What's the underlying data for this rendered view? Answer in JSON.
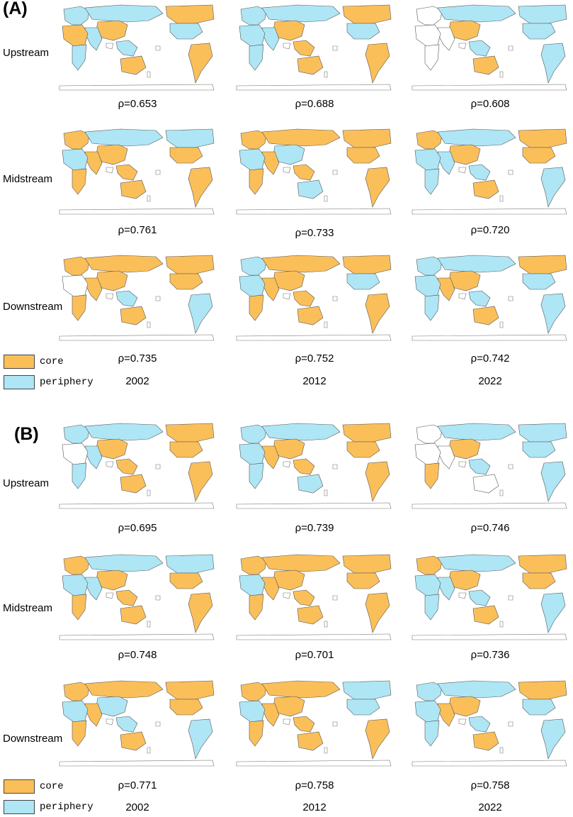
{
  "colors": {
    "core": "#fbbf5a",
    "periphery": "#aee6f5"
  },
  "panels": [
    {
      "label": "(A)",
      "rows": [
        {
          "name": "Upstream",
          "rho": [
            "ρ=0.653",
            "ρ=0.688",
            "ρ=0.608"
          ]
        },
        {
          "name": "Midstream",
          "rho": [
            "ρ=0.761",
            "ρ=0.733",
            "ρ=0.720"
          ]
        },
        {
          "name": "Downstream",
          "rho": [
            "ρ=0.735",
            "ρ=0.752",
            "ρ=0.742"
          ]
        }
      ],
      "years": [
        "2002",
        "2012",
        "2022"
      ],
      "legend": {
        "core": "core",
        "periphery": "periphery"
      }
    },
    {
      "label": "(B)",
      "rows": [
        {
          "name": "Upstream",
          "rho": [
            "ρ=0.695",
            "ρ=0.739",
            "ρ=0.746"
          ]
        },
        {
          "name": "Midstream",
          "rho": [
            "ρ=0.748",
            "ρ=0.701",
            "ρ=0.736"
          ]
        },
        {
          "name": "Downstream",
          "rho": [
            "ρ=0.771",
            "ρ=0.758",
            "ρ=0.758"
          ]
        }
      ],
      "years": [
        "2002",
        "2012",
        "2022"
      ],
      "legend": {
        "core": "core",
        "periphery": "periphery"
      }
    }
  ],
  "maps": [
    [
      "A-up-2002",
      "A-up-2012",
      "A-up-2022"
    ],
    [
      "A-mid-2002",
      "A-mid-2012",
      "A-mid-2022"
    ],
    [
      "A-down-2002",
      "A-down-2012",
      "A-down-2022"
    ],
    [
      "B-up-2002",
      "B-up-2012",
      "B-up-2022"
    ],
    [
      "B-mid-2002",
      "B-mid-2012",
      "B-mid-2022"
    ],
    [
      "B-down-2002",
      "B-down-2012",
      "B-down-2022"
    ]
  ],
  "regions": {
    "A-up-2002": {
      "europe": "p",
      "russia": "p",
      "china": "c",
      "sasia": "p",
      "seasia": "p",
      "africaN": "c",
      "africaS": "p",
      "australia": "c",
      "canada": "c",
      "usa": "p",
      "samerica": "c"
    },
    "A-up-2012": {
      "europe": "p",
      "russia": "p",
      "china": "c",
      "sasia": "p",
      "seasia": "c",
      "africaN": "p",
      "africaS": "p",
      "australia": "c",
      "canada": "c",
      "usa": "p",
      "samerica": "c"
    },
    "A-up-2022": {
      "europe": "n",
      "russia": "p",
      "china": "c",
      "sasia": "n",
      "seasia": "p",
      "africaN": "n",
      "africaS": "n",
      "australia": "c",
      "canada": "p",
      "usa": "p",
      "samerica": "p"
    },
    "A-mid-2002": {
      "europe": "c",
      "russia": "p",
      "china": "c",
      "sasia": "c",
      "seasia": "c",
      "africaN": "p",
      "africaS": "c",
      "australia": "c",
      "canada": "p",
      "usa": "c",
      "samerica": "c"
    },
    "A-mid-2012": {
      "europe": "c",
      "russia": "c",
      "china": "p",
      "sasia": "c",
      "seasia": "c",
      "africaN": "p",
      "africaS": "c",
      "australia": "p",
      "canada": "c",
      "usa": "c",
      "samerica": "c"
    },
    "A-mid-2022": {
      "europe": "c",
      "russia": "p",
      "china": "c",
      "sasia": "p",
      "seasia": "p",
      "africaN": "p",
      "africaS": "p",
      "australia": "c",
      "canada": "c",
      "usa": "c",
      "samerica": "p"
    },
    "A-down-2002": {
      "europe": "c",
      "russia": "c",
      "china": "c",
      "sasia": "c",
      "seasia": "p",
      "africaN": "n",
      "africaS": "c",
      "australia": "c",
      "canada": "c",
      "usa": "c",
      "samerica": "p"
    },
    "A-down-2012": {
      "europe": "p",
      "russia": "c",
      "china": "c",
      "sasia": "c",
      "seasia": "c",
      "africaN": "p",
      "africaS": "c",
      "australia": "c",
      "canada": "c",
      "usa": "p",
      "samerica": "c"
    },
    "A-down-2022": {
      "europe": "p",
      "russia": "p",
      "china": "c",
      "sasia": "c",
      "seasia": "p",
      "africaN": "p",
      "africaS": "p",
      "australia": "c",
      "canada": "c",
      "usa": "p",
      "samerica": "p"
    },
    "B-up-2002": {
      "europe": "p",
      "russia": "p",
      "china": "c",
      "sasia": "p",
      "seasia": "c",
      "africaN": "n",
      "africaS": "p",
      "australia": "c",
      "canada": "c",
      "usa": "c",
      "samerica": "c"
    },
    "B-up-2012": {
      "europe": "p",
      "russia": "p",
      "china": "c",
      "sasia": "c",
      "seasia": "c",
      "africaN": "p",
      "africaS": "p",
      "australia": "p",
      "canada": "c",
      "usa": "c",
      "samerica": "c"
    },
    "B-up-2022": {
      "europe": "n",
      "russia": "p",
      "china": "c",
      "sasia": "n",
      "seasia": "p",
      "africaN": "n",
      "africaS": "c",
      "australia": "n",
      "canada": "p",
      "usa": "p",
      "samerica": "p"
    },
    "B-mid-2002": {
      "europe": "c",
      "russia": "p",
      "china": "c",
      "sasia": "p",
      "seasia": "c",
      "africaN": "p",
      "africaS": "c",
      "australia": "c",
      "canada": "p",
      "usa": "c",
      "samerica": "c"
    },
    "B-mid-2012": {
      "europe": "c",
      "russia": "c",
      "china": "c",
      "sasia": "c",
      "seasia": "c",
      "africaN": "p",
      "africaS": "c",
      "australia": "c",
      "canada": "c",
      "usa": "c",
      "samerica": "c"
    },
    "B-mid-2022": {
      "europe": "c",
      "russia": "p",
      "china": "c",
      "sasia": "p",
      "seasia": "p",
      "africaN": "p",
      "africaS": "p",
      "australia": "c",
      "canada": "c",
      "usa": "c",
      "samerica": "p"
    },
    "B-down-2002": {
      "europe": "c",
      "russia": "c",
      "china": "p",
      "sasia": "c",
      "seasia": "p",
      "africaN": "p",
      "africaS": "c",
      "australia": "c",
      "canada": "c",
      "usa": "c",
      "samerica": "p"
    },
    "B-down-2012": {
      "europe": "c",
      "russia": "c",
      "china": "c",
      "sasia": "c",
      "seasia": "c",
      "africaN": "p",
      "africaS": "c",
      "australia": "c",
      "canada": "p",
      "usa": "p",
      "samerica": "c"
    },
    "B-down-2022": {
      "europe": "p",
      "russia": "p",
      "china": "c",
      "sasia": "c",
      "seasia": "p",
      "africaN": "p",
      "africaS": "p",
      "australia": "c",
      "canada": "c",
      "usa": "p",
      "samerica": "p"
    }
  }
}
